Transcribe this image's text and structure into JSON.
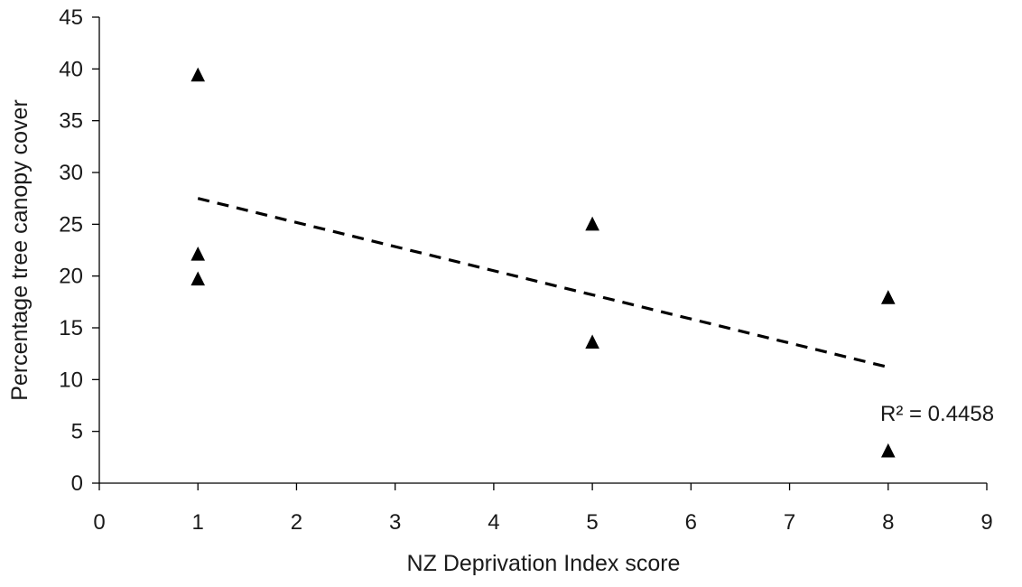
{
  "chart_data": {
    "type": "scatter",
    "title": "",
    "xlabel": "NZ Deprivation Index score",
    "ylabel": "Percentage tree canopy cover",
    "xlim": [
      0,
      9
    ],
    "ylim": [
      0,
      45
    ],
    "xticks": [
      0,
      1,
      2,
      3,
      4,
      5,
      6,
      7,
      8,
      9
    ],
    "yticks": [
      0,
      5,
      10,
      15,
      20,
      25,
      30,
      35,
      40,
      45
    ],
    "grid": false,
    "legend": "none",
    "series": [
      {
        "marker": "triangle",
        "color": "#000000",
        "points": [
          {
            "x": 1,
            "y": 39.4
          },
          {
            "x": 1,
            "y": 22.1
          },
          {
            "x": 1,
            "y": 19.7
          },
          {
            "x": 5,
            "y": 25.0
          },
          {
            "x": 5,
            "y": 13.6
          },
          {
            "x": 8,
            "y": 17.9
          },
          {
            "x": 8,
            "y": 3.1
          }
        ]
      }
    ],
    "trendline": {
      "type": "linear",
      "style": "dashed",
      "color": "#000000",
      "from": {
        "x": 1,
        "y": 27.5
      },
      "to": {
        "x": 8,
        "y": 11.2
      },
      "label": "R² = 0.4458"
    }
  }
}
